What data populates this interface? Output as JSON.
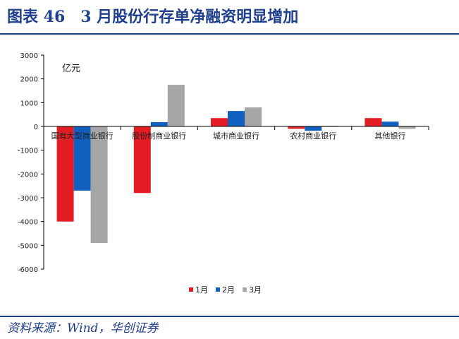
{
  "figure": {
    "title": "图表 46　3 月股份行存单净融资明显增加",
    "source": "资料来源：Wind，华创证券"
  },
  "chart_data": {
    "type": "bar",
    "title": "",
    "unit_label": "亿元",
    "categories": [
      "国有大型商业银行",
      "股份制商业银行",
      "城市商业银行",
      "农村商业银行",
      "其他银行"
    ],
    "series": [
      {
        "name": "1月",
        "color": "#e31d23",
        "values": [
          -4000,
          -2800,
          350,
          -100,
          350
        ]
      },
      {
        "name": "2月",
        "color": "#1060c0",
        "values": [
          -2700,
          180,
          650,
          -180,
          200
        ]
      },
      {
        "name": "3月",
        "color": "#a6a6a6",
        "values": [
          -4900,
          1750,
          800,
          -20,
          -100
        ]
      }
    ],
    "ylim": [
      -6000,
      3000
    ],
    "yticks": [
      3000,
      2000,
      1000,
      0,
      -1000,
      -2000,
      -3000,
      -4000,
      -5000,
      -6000
    ],
    "legend_position": "bottom-center",
    "grid": false
  }
}
